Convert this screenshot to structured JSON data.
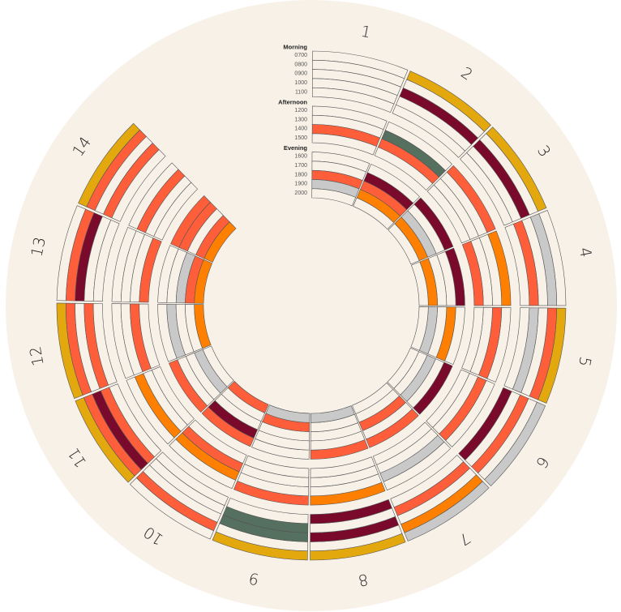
{
  "schedule": {
    "groups": [
      {
        "label": "Morning",
        "hours": [
          "0700",
          "0800",
          "0900",
          "1000",
          "1100"
        ]
      },
      {
        "label": "Afternoon",
        "hours": [
          "1200",
          "1300",
          "1400",
          "1500"
        ]
      },
      {
        "label": "Evening",
        "hours": [
          "1600",
          "1700",
          "1800",
          "1900",
          "2000"
        ]
      }
    ],
    "days": [
      "1",
      "2",
      "3",
      "4",
      "5",
      "6",
      "7",
      "8",
      "9",
      "10",
      "11",
      "12",
      "13",
      "14"
    ],
    "colors": {
      "background": "#F7F1E8",
      "empty": "#F7F1E8",
      "line": "#555555",
      "orange": "#FF8000",
      "red": "#FF5E3A",
      "gold": "#E2A80E",
      "maroon": "#7A0A2C",
      "green": "#55705E",
      "gray": "#C9C9C9"
    },
    "cells": [
      {
        "day": "1",
        "hour": "1400",
        "color": "red"
      },
      {
        "day": "1",
        "hour": "1800",
        "color": "red"
      },
      {
        "day": "1",
        "hour": "1900",
        "color": "gray"
      },
      {
        "day": "2",
        "hour": "0700",
        "color": "gold"
      },
      {
        "day": "2",
        "hour": "0900",
        "color": "maroon"
      },
      {
        "day": "2",
        "hour": "1300",
        "color": "green"
      },
      {
        "day": "2",
        "hour": "1400",
        "color": "red"
      },
      {
        "day": "2",
        "hour": "1700",
        "color": "maroon"
      },
      {
        "day": "2",
        "hour": "1800",
        "color": "red"
      },
      {
        "day": "2",
        "hour": "1900",
        "color": "orange"
      },
      {
        "day": "3",
        "hour": "0700",
        "color": "gold"
      },
      {
        "day": "3",
        "hour": "0900",
        "color": "maroon"
      },
      {
        "day": "3",
        "hour": "1200",
        "color": "red"
      },
      {
        "day": "3",
        "hour": "1600",
        "color": "maroon"
      },
      {
        "day": "3",
        "hour": "1800",
        "color": "gray"
      },
      {
        "day": "3",
        "hour": "1900",
        "color": "orange"
      },
      {
        "day": "4",
        "hour": "0800",
        "color": "gray"
      },
      {
        "day": "4",
        "hour": "1000",
        "color": "red"
      },
      {
        "day": "4",
        "hour": "1200",
        "color": "orange"
      },
      {
        "day": "4",
        "hour": "1500",
        "color": "red"
      },
      {
        "day": "4",
        "hour": "1600",
        "color": "maroon"
      },
      {
        "day": "4",
        "hour": "1900",
        "color": "orange"
      },
      {
        "day": "5",
        "hour": "0700",
        "color": "gold"
      },
      {
        "day": "5",
        "hour": "0800",
        "color": "red"
      },
      {
        "day": "5",
        "hour": "1000",
        "color": "gray"
      },
      {
        "day": "5",
        "hour": "1300",
        "color": "red"
      },
      {
        "day": "5",
        "hour": "1700",
        "color": "orange"
      },
      {
        "day": "5",
        "hour": "1900",
        "color": "gray"
      },
      {
        "day": "6",
        "hour": "0700",
        "color": "gray"
      },
      {
        "day": "6",
        "hour": "0900",
        "color": "red"
      },
      {
        "day": "6",
        "hour": "1100",
        "color": "maroon"
      },
      {
        "day": "6",
        "hour": "1300",
        "color": "red"
      },
      {
        "day": "6",
        "hour": "1600",
        "color": "maroon"
      },
      {
        "day": "6",
        "hour": "1800",
        "color": "gray"
      },
      {
        "day": "7",
        "hour": "0700",
        "color": "gray"
      },
      {
        "day": "7",
        "hour": "0800",
        "color": "orange"
      },
      {
        "day": "7",
        "hour": "1000",
        "color": "red"
      },
      {
        "day": "7",
        "hour": "1300",
        "color": "gray"
      },
      {
        "day": "7",
        "hour": "1600",
        "color": "red"
      },
      {
        "day": "7",
        "hour": "1800",
        "color": "red"
      },
      {
        "day": "8",
        "hour": "0700",
        "color": "gold"
      },
      {
        "day": "8",
        "hour": "0900",
        "color": "maroon"
      },
      {
        "day": "8",
        "hour": "1100",
        "color": "maroon"
      },
      {
        "day": "8",
        "hour": "1200",
        "color": "orange"
      },
      {
        "day": "8",
        "hour": "1600",
        "color": "red"
      },
      {
        "day": "8",
        "hour": "2000",
        "color": "gray"
      },
      {
        "day": "9",
        "hour": "0700",
        "color": "gold"
      },
      {
        "day": "9",
        "hour": "0900",
        "color": "green"
      },
      {
        "day": "9",
        "hour": "1000",
        "color": "green"
      },
      {
        "day": "9",
        "hour": "1200",
        "color": "red"
      },
      {
        "day": "9",
        "hour": "1900",
        "color": "red"
      },
      {
        "day": "9",
        "hour": "2000",
        "color": "gray"
      },
      {
        "day": "10",
        "hour": "0800",
        "color": "red"
      },
      {
        "day": "10",
        "hour": "1300",
        "color": "orange"
      },
      {
        "day": "10",
        "hour": "1400",
        "color": "red"
      },
      {
        "day": "10",
        "hour": "1600",
        "color": "red"
      },
      {
        "day": "10",
        "hour": "1700",
        "color": "maroon"
      },
      {
        "day": "10",
        "hour": "2000",
        "color": "red"
      },
      {
        "day": "11",
        "hour": "0700",
        "color": "gold"
      },
      {
        "day": "11",
        "hour": "0800",
        "color": "red"
      },
      {
        "day": "11",
        "hour": "0900",
        "color": "maroon"
      },
      {
        "day": "11",
        "hour": "1000",
        "color": "red"
      },
      {
        "day": "11",
        "hour": "1300",
        "color": "orange"
      },
      {
        "day": "11",
        "hour": "1600",
        "color": "red"
      },
      {
        "day": "11",
        "hour": "1900",
        "color": "gray"
      },
      {
        "day": "12",
        "hour": "0700",
        "color": "gold"
      },
      {
        "day": "12",
        "hour": "0800",
        "color": "red"
      },
      {
        "day": "12",
        "hour": "1000",
        "color": "red"
      },
      {
        "day": "12",
        "hour": "1400",
        "color": "red"
      },
      {
        "day": "12",
        "hour": "1700",
        "color": "gray"
      },
      {
        "day": "12",
        "hour": "2000",
        "color": "orange"
      },
      {
        "day": "13",
        "hour": "0800",
        "color": "red"
      },
      {
        "day": "13",
        "hour": "0900",
        "color": "maroon"
      },
      {
        "day": "13",
        "hour": "1500",
        "color": "red"
      },
      {
        "day": "13",
        "hour": "1800",
        "color": "gray"
      },
      {
        "day": "13",
        "hour": "1900",
        "color": "red"
      },
      {
        "day": "13",
        "hour": "2000",
        "color": "orange"
      },
      {
        "day": "14",
        "hour": "0700",
        "color": "gold"
      },
      {
        "day": "14",
        "hour": "0800",
        "color": "red"
      },
      {
        "day": "14",
        "hour": "1000",
        "color": "red"
      },
      {
        "day": "14",
        "hour": "1300",
        "color": "red"
      },
      {
        "day": "14",
        "hour": "1600",
        "color": "red"
      },
      {
        "day": "14",
        "hour": "1700",
        "color": "red"
      },
      {
        "day": "14",
        "hour": "1900",
        "color": "red"
      },
      {
        "day": "14",
        "hour": "2000",
        "color": "orange"
      }
    ]
  }
}
